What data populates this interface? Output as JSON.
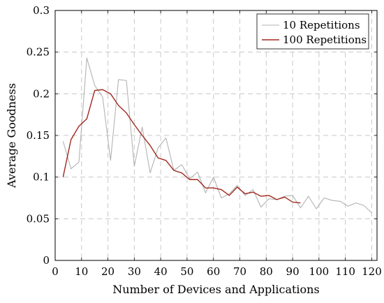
{
  "chart_data": {
    "type": "line",
    "xlabel": "Number of Devices and Applications",
    "ylabel": "Average Goodness",
    "xlim": [
      0,
      122
    ],
    "ylim": [
      0,
      0.3
    ],
    "xticks": [
      0,
      10,
      20,
      30,
      40,
      50,
      60,
      70,
      80,
      90,
      100,
      110,
      120
    ],
    "yticks": [
      0,
      0.05,
      0.1,
      0.15,
      0.2,
      0.25,
      0.3
    ],
    "xtick_labels": [
      "0",
      "10",
      "20",
      "30",
      "40",
      "50",
      "60",
      "70",
      "80",
      "90",
      "100",
      "110",
      "120"
    ],
    "ytick_labels": [
      "0",
      "0.05",
      "0.1",
      "0.15",
      "0.2",
      "0.25",
      "0.3"
    ],
    "grid": true,
    "legend_position": "top-right",
    "series": [
      {
        "name": "10 Repetitions",
        "color": "#b3b3b3",
        "x": [
          3,
          6,
          9,
          12,
          15,
          18,
          21,
          24,
          27,
          30,
          33,
          36,
          39,
          42,
          45,
          48,
          51,
          54,
          57,
          60,
          63,
          66,
          69,
          72,
          75,
          78,
          81,
          84,
          87,
          90,
          93,
          96,
          99,
          102,
          105,
          108,
          111,
          114,
          117,
          120
        ],
        "values": [
          0.143,
          0.11,
          0.118,
          0.243,
          0.21,
          0.196,
          0.12,
          0.217,
          0.216,
          0.113,
          0.16,
          0.105,
          0.135,
          0.147,
          0.108,
          0.115,
          0.098,
          0.106,
          0.081,
          0.1,
          0.075,
          0.08,
          0.09,
          0.078,
          0.085,
          0.064,
          0.074,
          0.073,
          0.077,
          0.078,
          0.063,
          0.077,
          0.062,
          0.075,
          0.072,
          0.071,
          0.065,
          0.069,
          0.066,
          0.057
        ]
      },
      {
        "name": "100 Repetitions",
        "color": "#a0281e",
        "x": [
          3,
          6,
          9,
          12,
          15,
          18,
          21,
          24,
          27,
          30,
          33,
          36,
          39,
          42,
          45,
          48,
          51,
          54,
          57,
          60,
          63,
          66,
          69,
          72,
          75,
          78,
          81,
          84,
          87,
          90,
          93
        ],
        "values": [
          0.1,
          0.145,
          0.161,
          0.17,
          0.204,
          0.205,
          0.2,
          0.186,
          0.177,
          0.163,
          0.15,
          0.138,
          0.123,
          0.12,
          0.108,
          0.105,
          0.097,
          0.097,
          0.087,
          0.087,
          0.085,
          0.078,
          0.088,
          0.08,
          0.082,
          0.077,
          0.078,
          0.073,
          0.076,
          0.07,
          0.069
        ]
      }
    ]
  }
}
